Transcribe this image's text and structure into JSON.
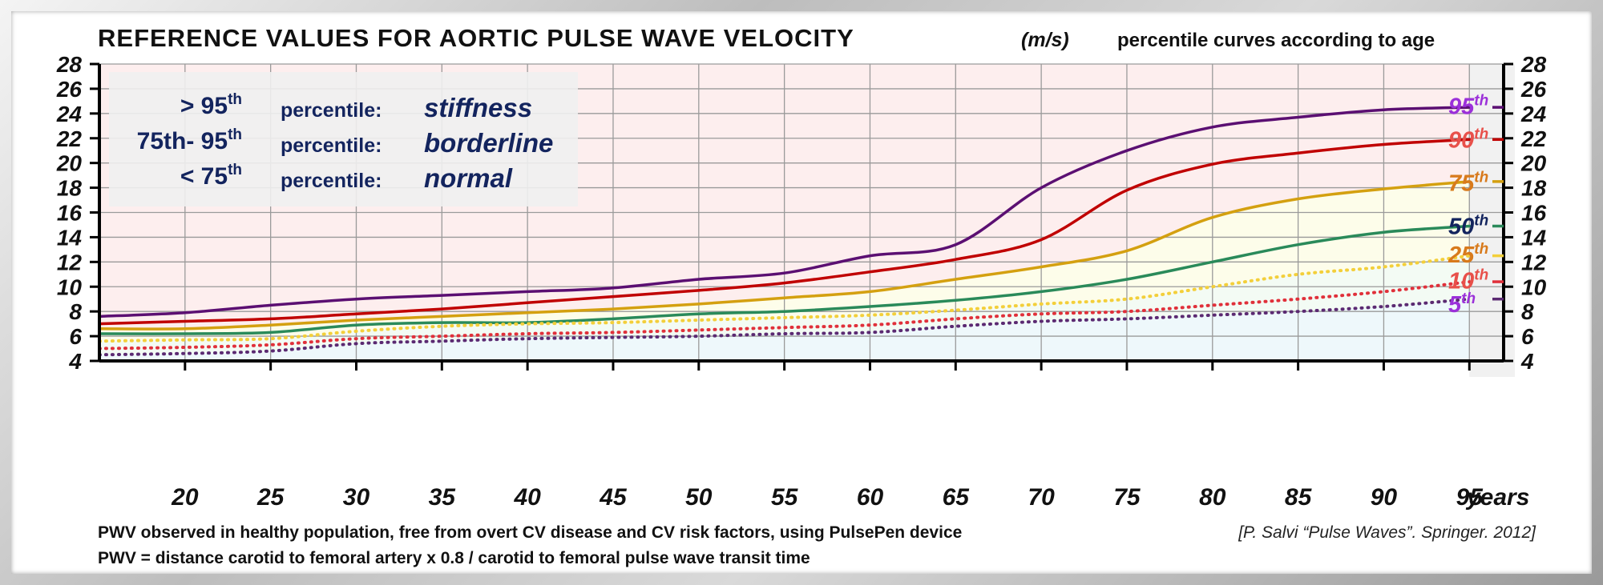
{
  "chart_data": {
    "type": "line",
    "title": "REFERENCE VALUES FOR AORTIC PULSE WAVE VELOCITY",
    "units": "(m/s)",
    "subtitle": "percentile curves according to age",
    "xlabel": "years",
    "xlim": [
      15,
      97
    ],
    "ylim": [
      4,
      28
    ],
    "xticks": [
      20,
      25,
      30,
      35,
      40,
      45,
      50,
      55,
      60,
      65,
      70,
      75,
      80,
      85,
      90,
      95
    ],
    "yticks": [
      4,
      6,
      8,
      10,
      12,
      14,
      16,
      18,
      20,
      22,
      24,
      26,
      28
    ],
    "grid": true,
    "legend": [
      {
        "range": "> 95",
        "sup": "th",
        "word": "percentile:",
        "status": "stiffness"
      },
      {
        "range": "75th- 95",
        "sup": "th",
        "word": "percentile:",
        "status": "borderline"
      },
      {
        "range": "< 75",
        "sup": "th",
        "word": "percentile:",
        "status": "normal"
      }
    ],
    "series": [
      {
        "name": "95",
        "sup": "th",
        "color": "#5b0f72",
        "label_color": "#9b30d9",
        "dotted": false,
        "x": [
          15,
          20,
          25,
          30,
          35,
          40,
          45,
          50,
          55,
          60,
          65,
          70,
          75,
          80,
          85,
          90,
          95
        ],
        "y": [
          7.6,
          7.9,
          8.5,
          9.0,
          9.3,
          9.6,
          9.9,
          10.6,
          11.1,
          12.5,
          13.4,
          18.0,
          21.0,
          22.9,
          23.7,
          24.3,
          24.5
        ]
      },
      {
        "name": "90",
        "sup": "th",
        "color": "#c00000",
        "label_color": "#e8504a",
        "dotted": false,
        "x": [
          15,
          20,
          25,
          30,
          35,
          40,
          45,
          50,
          55,
          60,
          65,
          70,
          75,
          80,
          85,
          90,
          95
        ],
        "y": [
          7.0,
          7.2,
          7.4,
          7.8,
          8.2,
          8.7,
          9.2,
          9.7,
          10.3,
          11.2,
          12.2,
          13.8,
          17.8,
          19.9,
          20.8,
          21.5,
          21.9
        ]
      },
      {
        "name": "75",
        "sup": "th",
        "color": "#d4a010",
        "label_color": "#d87a1c",
        "dotted": false,
        "x": [
          15,
          20,
          25,
          30,
          35,
          40,
          45,
          50,
          55,
          60,
          65,
          70,
          75,
          80,
          85,
          90,
          95
        ],
        "y": [
          6.6,
          6.6,
          6.9,
          7.3,
          7.6,
          7.9,
          8.2,
          8.6,
          9.1,
          9.6,
          10.6,
          11.6,
          12.9,
          15.6,
          17.1,
          17.9,
          18.5
        ]
      },
      {
        "name": "50",
        "sup": "th",
        "color": "#2a8a5a",
        "label_color": "#13245e",
        "dotted": false,
        "x": [
          15,
          20,
          25,
          30,
          35,
          40,
          45,
          50,
          55,
          60,
          65,
          70,
          75,
          80,
          85,
          90,
          95
        ],
        "y": [
          6.2,
          6.2,
          6.3,
          6.9,
          7.1,
          7.1,
          7.4,
          7.8,
          8.0,
          8.4,
          8.9,
          9.6,
          10.6,
          12.0,
          13.4,
          14.4,
          14.9
        ]
      },
      {
        "name": "25",
        "sup": "th",
        "color": "#f3cf3a",
        "label_color": "#d87a1c",
        "dotted": true,
        "x": [
          15,
          20,
          25,
          30,
          35,
          40,
          45,
          50,
          55,
          60,
          65,
          70,
          75,
          80,
          85,
          90,
          95
        ],
        "y": [
          5.6,
          5.7,
          5.8,
          6.4,
          6.8,
          7.0,
          7.1,
          7.3,
          7.5,
          7.7,
          8.1,
          8.6,
          9.0,
          10.0,
          11.0,
          11.6,
          12.5
        ]
      },
      {
        "name": "10",
        "sup": "th",
        "color": "#e0303a",
        "label_color": "#e8504a",
        "dotted": true,
        "x": [
          15,
          20,
          25,
          30,
          35,
          40,
          45,
          50,
          55,
          60,
          65,
          70,
          75,
          80,
          85,
          90,
          95
        ],
        "y": [
          5.0,
          5.1,
          5.3,
          5.8,
          6.0,
          6.2,
          6.3,
          6.5,
          6.7,
          6.9,
          7.4,
          7.8,
          8.0,
          8.5,
          9.0,
          9.6,
          10.4
        ]
      },
      {
        "name": "5",
        "sup": "th",
        "color": "#5b2a72",
        "label_color": "#9b30d9",
        "dotted": true,
        "x": [
          15,
          20,
          25,
          30,
          35,
          40,
          45,
          50,
          55,
          60,
          65,
          70,
          75,
          80,
          85,
          90,
          95
        ],
        "y": [
          4.5,
          4.6,
          4.8,
          5.4,
          5.6,
          5.8,
          5.9,
          6.0,
          6.2,
          6.3,
          6.8,
          7.2,
          7.4,
          7.7,
          8.0,
          8.4,
          9.0
        ]
      }
    ]
  },
  "footnotes": {
    "line1": "PWV observed in healthy population, free from overt CV disease and CV risk factors, using PulsePen device",
    "line2": "PWV = distance carotid to femoral artery x 0.8  / carotid to femoral pulse wave transit time",
    "reference": "[P. Salvi  “Pulse Waves”. Springer. 2012]"
  }
}
